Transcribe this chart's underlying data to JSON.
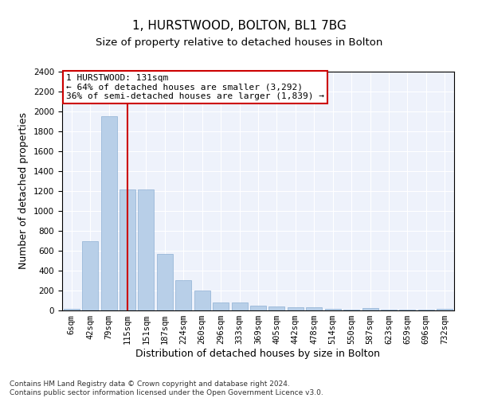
{
  "title": "1, HURSTWOOD, BOLTON, BL1 7BG",
  "subtitle": "Size of property relative to detached houses in Bolton",
  "xlabel": "Distribution of detached houses by size in Bolton",
  "ylabel": "Number of detached properties",
  "categories": [
    "6sqm",
    "42sqm",
    "79sqm",
    "115sqm",
    "151sqm",
    "187sqm",
    "224sqm",
    "260sqm",
    "296sqm",
    "333sqm",
    "369sqm",
    "405sqm",
    "442sqm",
    "478sqm",
    "514sqm",
    "550sqm",
    "587sqm",
    "623sqm",
    "659sqm",
    "696sqm",
    "732sqm"
  ],
  "values": [
    15,
    700,
    1950,
    1220,
    1220,
    570,
    305,
    200,
    80,
    80,
    45,
    40,
    35,
    30,
    20,
    10,
    25,
    5,
    5,
    5,
    20
  ],
  "bar_color": "#b8cfe8",
  "bar_edge_color": "#8eb0d4",
  "vline_x": 3,
  "vline_color": "#cc0000",
  "annotation_text": "1 HURSTWOOD: 131sqm\n← 64% of detached houses are smaller (3,292)\n36% of semi-detached houses are larger (1,839) →",
  "annotation_box_color": "#ffffff",
  "annotation_box_edge": "#cc0000",
  "ylim": [
    0,
    2400
  ],
  "yticks": [
    0,
    200,
    400,
    600,
    800,
    1000,
    1200,
    1400,
    1600,
    1800,
    2000,
    2200,
    2400
  ],
  "footer": "Contains HM Land Registry data © Crown copyright and database right 2024.\nContains public sector information licensed under the Open Government Licence v3.0.",
  "bg_color": "#eef2fb",
  "title_fontsize": 11,
  "subtitle_fontsize": 9.5,
  "axis_label_fontsize": 9,
  "tick_fontsize": 7.5,
  "annotation_fontsize": 8,
  "footer_fontsize": 6.5
}
